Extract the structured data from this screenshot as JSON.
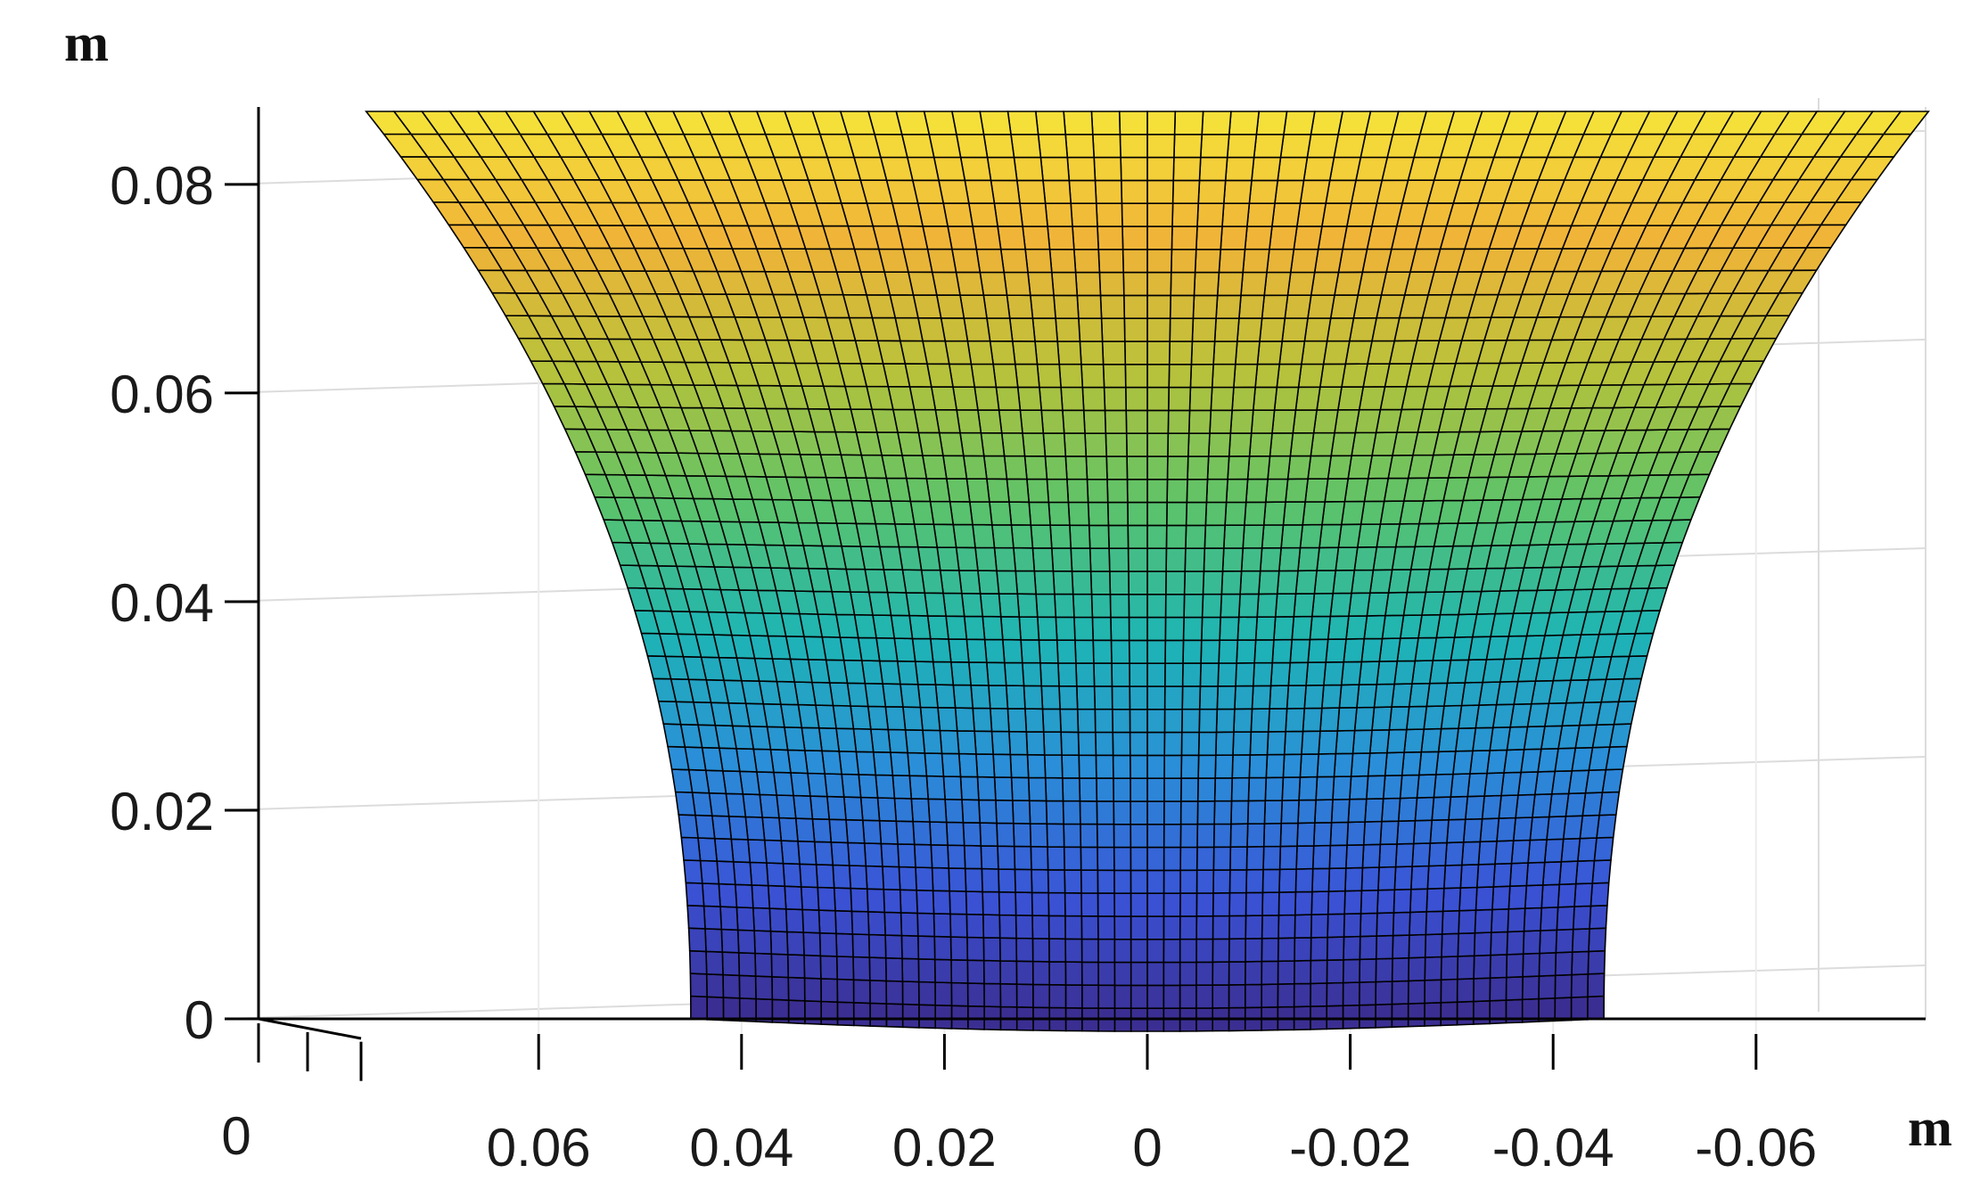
{
  "chart_data": {
    "type": "surface",
    "view": "3d-perspective",
    "colormap": "parula",
    "colormap_colors": [
      "#3b2a8c",
      "#3a52d6",
      "#2a8fd8",
      "#1eb5b4",
      "#5cc36a",
      "#b7c23a",
      "#f0b338",
      "#f5e43a"
    ],
    "mesh_edge_color": "#000000",
    "grid": true,
    "z_axis": {
      "unit_label": "m",
      "ticks": [
        0,
        0.02,
        0.04,
        0.06,
        0.08
      ],
      "tick_labels": [
        "0",
        "0.02",
        "0.04",
        "0.06",
        "0.08"
      ],
      "range": [
        0,
        0.087
      ]
    },
    "x_axis": {
      "unit_label": "m",
      "ticks": [
        0.06,
        0.04,
        0.02,
        0,
        -0.02,
        -0.04,
        -0.06
      ],
      "tick_labels": [
        "0.06",
        "0.04",
        "0.02",
        "0",
        "-0.02",
        "-0.04",
        "-0.06"
      ],
      "reversed": true
    },
    "y_axis": {
      "tick_labels": [
        "0"
      ]
    },
    "surface": {
      "bottom_half_width": 0.045,
      "top_half_width": 0.077,
      "height": 0.087
    }
  }
}
